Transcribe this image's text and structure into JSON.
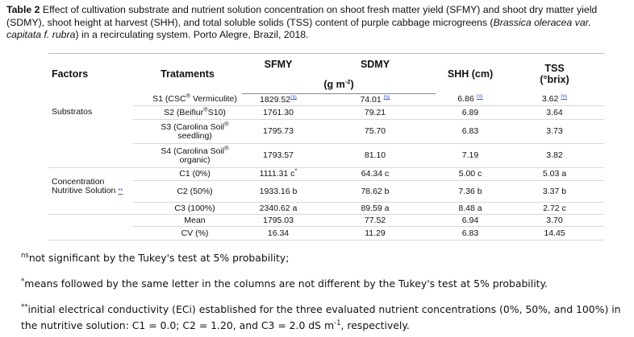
{
  "caption": [
    {
      "b": "Table 2"
    },
    {
      "t": " Effect of cultivation substrate and nutrient solution concentration on shoot fresh matter yield (SFMY) and shoot dry matter yield (SDMY), shoot height at harvest (SHH), and total soluble solids (TSS) content of purple cabbage microgreens ("
    },
    {
      "i": "Brassica oleracea var. capitata f. rubra"
    },
    {
      "t": ") in a recirculating system. Porto Alegre, Brazil, 2018."
    }
  ],
  "table": {
    "header": {
      "factors": "Factors",
      "treatments": "Trataments",
      "sfmy": "SFMY",
      "sdmy": "SDMY",
      "unit": [
        {
          "t": "(g m"
        },
        {
          "sup": "-2"
        },
        {
          "t": ")"
        }
      ],
      "shh": "SHH (cm)",
      "tss": "TSS",
      "tss_unit": "(°brix)"
    },
    "groups": [
      {
        "factor": [
          {
            "t": "Substratos"
          }
        ],
        "rows": [
          {
            "treatment": [
              {
                "t": "S1 (CSC"
              },
              {
                "sup": "®"
              },
              {
                "t": " Vermiculite)"
              }
            ],
            "values": [
              [
                {
                  "t": "1829.52"
                },
                {
                  "usup": "ns"
                }
              ],
              [
                {
                  "t": "74.01 "
                },
                {
                  "usup": "ns"
                }
              ],
              [
                {
                  "t": "6.86 "
                },
                {
                  "usup": "ns"
                }
              ],
              [
                {
                  "t": "3.62 "
                },
                {
                  "usup": "ns"
                }
              ]
            ]
          },
          {
            "treatment": [
              {
                "t": "S2 (Beifiur"
              },
              {
                "sup": "®"
              },
              {
                "t": "S10)"
              }
            ],
            "values": [
              [
                {
                  "t": "1761.30"
                }
              ],
              [
                {
                  "t": "79.21"
                }
              ],
              [
                {
                  "t": "6.89"
                }
              ],
              [
                {
                  "t": "3.64"
                }
              ]
            ]
          },
          {
            "treatment": [
              {
                "t": "S3 (Carolina Soil"
              },
              {
                "sup": "®"
              },
              {
                "t": " seedling)"
              }
            ],
            "values": [
              [
                {
                  "t": "1795.73"
                }
              ],
              [
                {
                  "t": "75.70"
                }
              ],
              [
                {
                  "t": "6.83"
                }
              ],
              [
                {
                  "t": "3.73"
                }
              ]
            ]
          },
          {
            "treatment": [
              {
                "t": "S4 (Carolina Soil"
              },
              {
                "sup": "®"
              },
              {
                "t": " organic)"
              }
            ],
            "values": [
              [
                {
                  "t": "1793.57"
                }
              ],
              [
                {
                  "t": "81.10"
                }
              ],
              [
                {
                  "t": "7.19"
                }
              ],
              [
                {
                  "t": "3.82"
                }
              ]
            ]
          }
        ]
      },
      {
        "factor": [
          {
            "t": "Concentration Nutritive Solution "
          },
          {
            "u": "**"
          }
        ],
        "rows": [
          {
            "treatment": [
              {
                "t": "C1 (0%)"
              }
            ],
            "values": [
              [
                {
                  "t": "1111.31 c"
                },
                {
                  "sup": "*"
                }
              ],
              [
                {
                  "t": "64.34 c"
                }
              ],
              [
                {
                  "t": "5.00 c"
                }
              ],
              [
                {
                  "t": "5.03 a"
                }
              ]
            ]
          },
          {
            "treatment": [
              {
                "t": "C2 (50%)"
              }
            ],
            "values": [
              [
                {
                  "t": "1933.16 b"
                }
              ],
              [
                {
                  "t": "78.62 b"
                }
              ],
              [
                {
                  "t": "7.36 b"
                }
              ],
              [
                {
                  "t": "3.37 b"
                }
              ]
            ]
          },
          {
            "treatment": [
              {
                "t": "C3 (100%)"
              }
            ],
            "values": [
              [
                {
                  "t": "2340.62 a"
                }
              ],
              [
                {
                  "t": "89.59 a"
                }
              ],
              [
                {
                  "t": "8.48 a"
                }
              ],
              [
                {
                  "t": "2.72 c"
                }
              ]
            ]
          }
        ]
      },
      {
        "rows": [
          {
            "treatment": [
              {
                "t": "Mean"
              }
            ],
            "values": [
              [
                {
                  "t": "1795.03"
                }
              ],
              [
                {
                  "t": "77.52"
                }
              ],
              [
                {
                  "t": "6.94"
                }
              ],
              [
                {
                  "t": "3.70"
                }
              ]
            ]
          },
          {
            "treatment": [
              {
                "t": "CV (%)"
              }
            ],
            "values": [
              [
                {
                  "t": "16.34"
                }
              ],
              [
                {
                  "t": "11.29"
                }
              ],
              [
                {
                  "t": "6.83"
                }
              ],
              [
                {
                  "t": "14.45"
                }
              ]
            ]
          }
        ]
      }
    ]
  },
  "footnotes": [
    [
      {
        "sup": "ns"
      },
      {
        "t": "not significant by the Tukey's test at 5% probability;"
      }
    ],
    [
      {
        "sup": "*"
      },
      {
        "t": "means followed by the same letter in the columns are not different by the Tukey's test at 5% probability."
      }
    ],
    [
      {
        "sup": "**"
      },
      {
        "t": "initial electrical conductivity (ECi) established for the three evaluated nutrient concentrations (0%, 50%, and 100%) in the nutritive solution: C1 = 0.0; C2 = 1.20, and C3 = 2.0 dS m"
      },
      {
        "sup": "-1"
      },
      {
        "t": ", respectively."
      }
    ]
  ]
}
